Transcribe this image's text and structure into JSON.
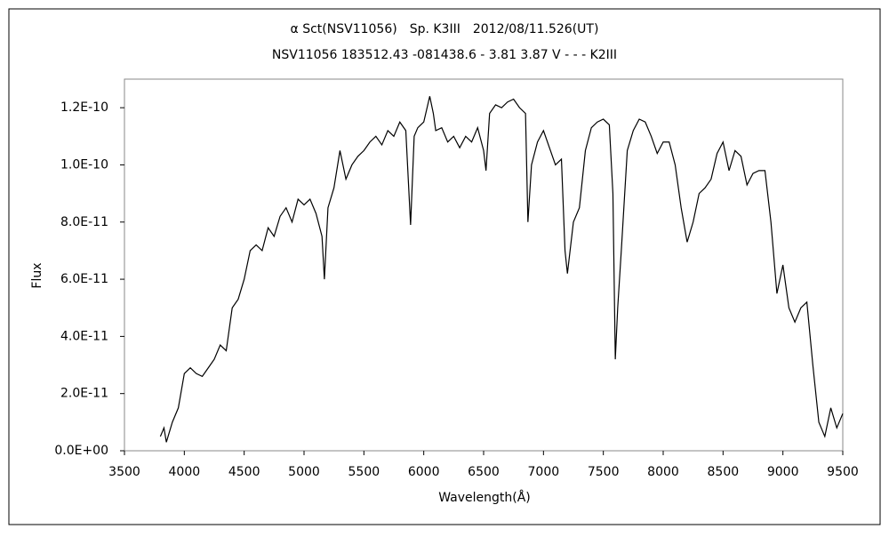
{
  "chart_data": {
    "type": "line",
    "title": "α Sct(NSV11056)　Sp. K3III　2012/08/11.526(UT)",
    "subtitle": "NSV11056 183512.43 -081438.6 - 3.81 3.87 V - - - K2III",
    "xlabel": "Wavelength(Å)",
    "ylabel": "Flux",
    "xlim": [
      3500,
      9500
    ],
    "xticks": [
      3500,
      4000,
      4500,
      5000,
      5500,
      6000,
      6500,
      7000,
      7500,
      8000,
      8500,
      9000,
      9500
    ],
    "ylim": [
      0,
      1.3e-10
    ],
    "yticks": [
      {
        "value": 0,
        "label": "0.0E+00"
      },
      {
        "value": 2e-11,
        "label": "2.0E-11"
      },
      {
        "value": 4e-11,
        "label": "4.0E-11"
      },
      {
        "value": 6e-11,
        "label": "6.0E-11"
      },
      {
        "value": 8e-11,
        "label": "8.0E-11"
      },
      {
        "value": 1e-10,
        "label": "1.0E-10"
      },
      {
        "value": 1.2e-10,
        "label": "1.2E-10"
      }
    ],
    "grid": false,
    "series": [
      {
        "color": "#000000",
        "x": [
          3800,
          3830,
          3850,
          3900,
          3950,
          4000,
          4050,
          4100,
          4150,
          4200,
          4250,
          4300,
          4350,
          4400,
          4450,
          4500,
          4550,
          4600,
          4650,
          4700,
          4750,
          4800,
          4850,
          4900,
          4950,
          5000,
          5050,
          5100,
          5150,
          5170,
          5200,
          5250,
          5300,
          5350,
          5400,
          5450,
          5500,
          5550,
          5600,
          5650,
          5700,
          5750,
          5800,
          5850,
          5890,
          5920,
          5950,
          6000,
          6050,
          6080,
          6100,
          6150,
          6200,
          6250,
          6300,
          6350,
          6400,
          6450,
          6500,
          6520,
          6550,
          6600,
          6650,
          6700,
          6750,
          6800,
          6850,
          6870,
          6900,
          6950,
          7000,
          7050,
          7100,
          7150,
          7180,
          7200,
          7250,
          7300,
          7350,
          7400,
          7450,
          7500,
          7550,
          7580,
          7600,
          7620,
          7650,
          7700,
          7750,
          7800,
          7850,
          7900,
          7950,
          8000,
          8050,
          8100,
          8150,
          8200,
          8250,
          8300,
          8350,
          8400,
          8450,
          8500,
          8550,
          8600,
          8650,
          8700,
          8750,
          8800,
          8850,
          8900,
          8950,
          9000,
          9050,
          9100,
          9150,
          9200,
          9250,
          9300,
          9350,
          9400,
          9450,
          9500
        ],
        "values": [
          5e-12,
          8e-12,
          3e-12,
          1e-11,
          1.5e-11,
          2.7e-11,
          2.9e-11,
          2.7e-11,
          2.6e-11,
          2.9e-11,
          3.2e-11,
          3.7e-11,
          3.5e-11,
          5e-11,
          5.3e-11,
          6e-11,
          7e-11,
          7.2e-11,
          7e-11,
          7.8e-11,
          7.5e-11,
          8.2e-11,
          8.5e-11,
          8e-11,
          8.8e-11,
          8.6e-11,
          8.8e-11,
          8.3e-11,
          7.5e-11,
          6e-11,
          8.5e-11,
          9.2e-11,
          1.05e-10,
          9.5e-11,
          1e-10,
          1.03e-10,
          1.05e-10,
          1.08e-10,
          1.1e-10,
          1.07e-10,
          1.12e-10,
          1.1e-10,
          1.15e-10,
          1.12e-10,
          7.9e-11,
          1.1e-10,
          1.13e-10,
          1.15e-10,
          1.24e-10,
          1.18e-10,
          1.12e-10,
          1.13e-10,
          1.08e-10,
          1.1e-10,
          1.06e-10,
          1.1e-10,
          1.08e-10,
          1.13e-10,
          1.05e-10,
          9.8e-11,
          1.18e-10,
          1.21e-10,
          1.2e-10,
          1.22e-10,
          1.23e-10,
          1.2e-10,
          1.18e-10,
          8e-11,
          1e-10,
          1.08e-10,
          1.12e-10,
          1.06e-10,
          1e-10,
          1.02e-10,
          7e-11,
          6.2e-11,
          8e-11,
          8.5e-11,
          1.05e-10,
          1.13e-10,
          1.15e-10,
          1.16e-10,
          1.14e-10,
          9e-11,
          3.2e-11,
          5e-11,
          7e-11,
          1.05e-10,
          1.12e-10,
          1.16e-10,
          1.15e-10,
          1.1e-10,
          1.04e-10,
          1.08e-10,
          1.08e-10,
          1e-10,
          8.5e-11,
          7.3e-11,
          8e-11,
          9e-11,
          9.2e-11,
          9.5e-11,
          1.04e-10,
          1.08e-10,
          9.8e-11,
          1.05e-10,
          1.03e-10,
          9.3e-11,
          9.7e-11,
          9.8e-11,
          9.8e-11,
          8e-11,
          5.5e-11,
          6.5e-11,
          5e-11,
          4.5e-11,
          5e-11,
          5.2e-11,
          3e-11,
          1e-11,
          5e-12,
          1.5e-11,
          8e-12,
          1.3e-11
        ]
      }
    ]
  }
}
